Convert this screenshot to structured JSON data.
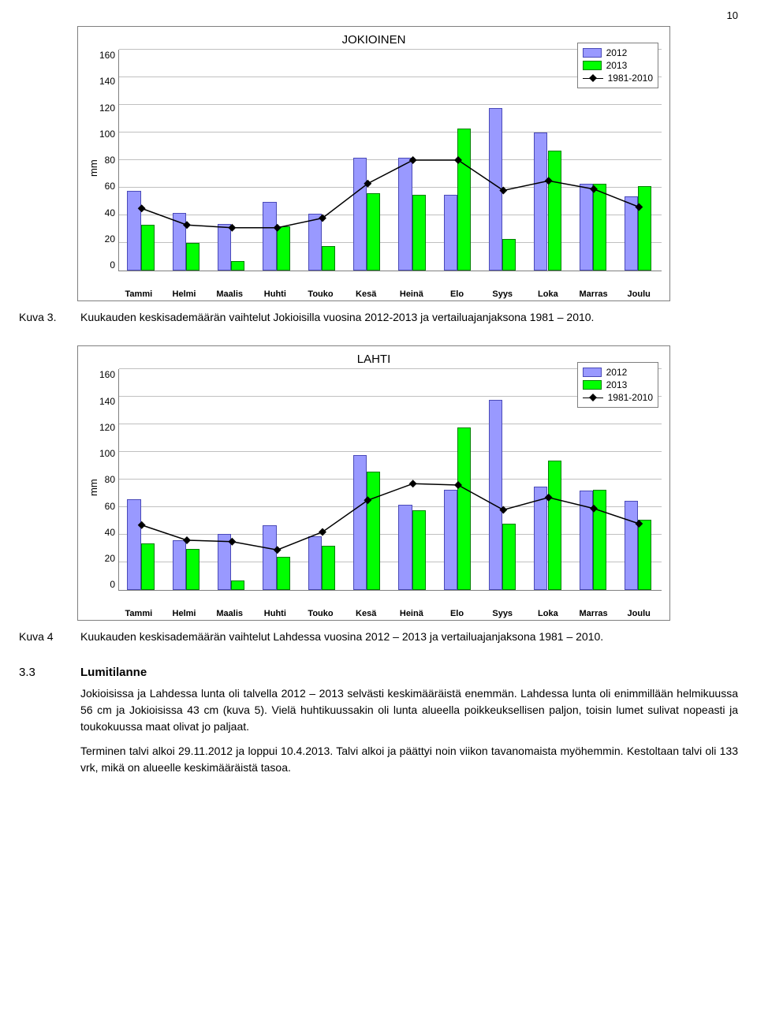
{
  "page_number": "10",
  "chart1": {
    "type": "bar_with_line",
    "title": "JOKIOINEN",
    "ylabel": "mm",
    "ylim": [
      0,
      160
    ],
    "ytick_step": 20,
    "grid_color": "#c0c0c0",
    "background_color": "#ffffff",
    "border_color": "#7f7f7f",
    "bar_color_2012": "#9999ff",
    "bar_border_2012": "#4a4ab8",
    "bar_color_2013": "#00ff00",
    "bar_border_2013": "#008000",
    "line_color": "#000000",
    "marker_shape": "diamond",
    "marker_size": 7,
    "categories": [
      "Tammi",
      "Helmi",
      "Maalis",
      "Huhti",
      "Touko",
      "Kesä",
      "Heinä",
      "Elo",
      "Syys",
      "Loka",
      "Marras",
      "Joulu"
    ],
    "values_2012": [
      58,
      42,
      34,
      50,
      41,
      82,
      82,
      55,
      118,
      100,
      63,
      54
    ],
    "values_2013": [
      33,
      20,
      7,
      32,
      18,
      56,
      55,
      103,
      23,
      87,
      63,
      61
    ],
    "values_line": [
      45,
      33,
      31,
      31,
      38,
      63,
      80,
      80,
      58,
      65,
      59,
      46
    ],
    "legend": {
      "items": [
        "2012",
        "2013",
        "1981-2010"
      ]
    },
    "title_fontsize": 15,
    "label_fontsize": 12
  },
  "caption1": {
    "label": "Kuva 3.",
    "text": "Kuukauden keskisademäärän vaihtelut Jokioisilla vuosina 2012-2013 ja vertailuajanjaksona 1981 – 2010."
  },
  "chart2": {
    "type": "bar_with_line",
    "title": "LAHTI",
    "ylabel": "mm",
    "ylim": [
      0,
      160
    ],
    "ytick_step": 20,
    "grid_color": "#c0c0c0",
    "background_color": "#ffffff",
    "border_color": "#7f7f7f",
    "bar_color_2012": "#9999ff",
    "bar_border_2012": "#4a4ab8",
    "bar_color_2013": "#00ff00",
    "bar_border_2013": "#008000",
    "line_color": "#000000",
    "marker_shape": "diamond",
    "marker_size": 7,
    "categories": [
      "Tammi",
      "Helmi",
      "Maalis",
      "Huhti",
      "Touko",
      "Kesä",
      "Heinä",
      "Elo",
      "Syys",
      "Loka",
      "Marras",
      "Joulu"
    ],
    "values_2012": [
      66,
      36,
      41,
      47,
      39,
      98,
      62,
      73,
      138,
      75,
      72,
      65
    ],
    "values_2013": [
      34,
      30,
      7,
      24,
      32,
      86,
      58,
      118,
      48,
      94,
      73,
      51
    ],
    "values_line": [
      47,
      36,
      35,
      29,
      42,
      65,
      77,
      76,
      58,
      67,
      59,
      48
    ],
    "legend": {
      "items": [
        "2012",
        "2013",
        "1981-2010"
      ]
    },
    "title_fontsize": 15,
    "label_fontsize": 12
  },
  "caption2": {
    "label": "Kuva 4",
    "text": "Kuukauden keskisademäärän vaihtelut Lahdessa vuosina 2012 – 2013 ja vertailuajanjaksona 1981 – 2010."
  },
  "section": {
    "number": "3.3",
    "title": "Lumitilanne",
    "para1": "Jokioisissa ja Lahdessa lunta oli talvella 2012 – 2013 selvästi keskimääräistä enemmän. Lahdessa lunta oli enimmillään helmikuussa 56 cm ja Jokioisissa 43 cm (kuva 5). Vielä huhtikuussakin oli lunta alueella poikkeuksellisen paljon, toisin lumet sulivat nopeasti ja toukokuussa maat olivat jo paljaat.",
    "para2": "Terminen talvi alkoi 29.11.2012 ja loppui 10.4.2013. Talvi alkoi ja päättyi noin viikon tavanomaista myöhemmin. Kestoltaan talvi oli 133 vrk, mikä on alueelle keskimääräistä tasoa."
  }
}
